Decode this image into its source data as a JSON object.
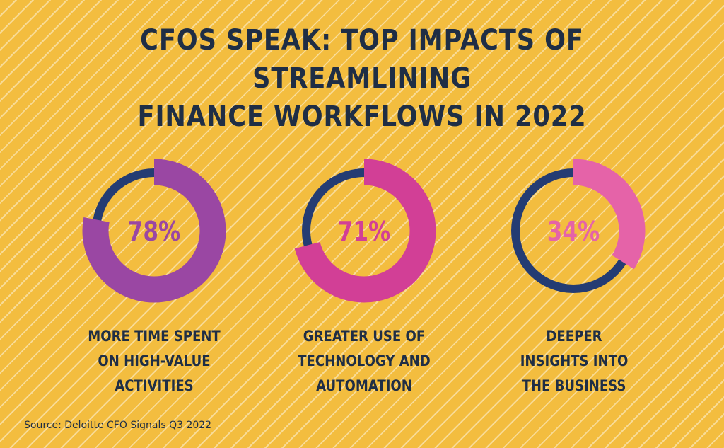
{
  "title": {
    "line1": "CFOS SPEAK: TOP IMPACTS OF STREAMLINING",
    "line2": "FINANCE WORKFLOWS IN 2022"
  },
  "source": "Source: Deloitte CFO Signals Q3 2022",
  "colors": {
    "background": "#f3bd3f",
    "text": "#1f2e45",
    "track": "#243c73"
  },
  "chart_data": [
    {
      "type": "pie",
      "values": [
        78
      ],
      "value_label": "78%",
      "caption": [
        "MORE TIME SPENT",
        "ON HIGH-VALUE",
        "ACTIVITIES"
      ],
      "color": "#9a47a3"
    },
    {
      "type": "pie",
      "values": [
        71
      ],
      "value_label": "71%",
      "caption": [
        "GREATER USE OF",
        "TECHNOLOGY AND",
        "AUTOMATION"
      ],
      "color": "#d23f96"
    },
    {
      "type": "pie",
      "values": [
        34
      ],
      "value_label": "34%",
      "caption": [
        "DEEPER",
        "INSIGHTS INTO",
        "THE BUSINESS"
      ],
      "color": "#e563a8"
    }
  ]
}
